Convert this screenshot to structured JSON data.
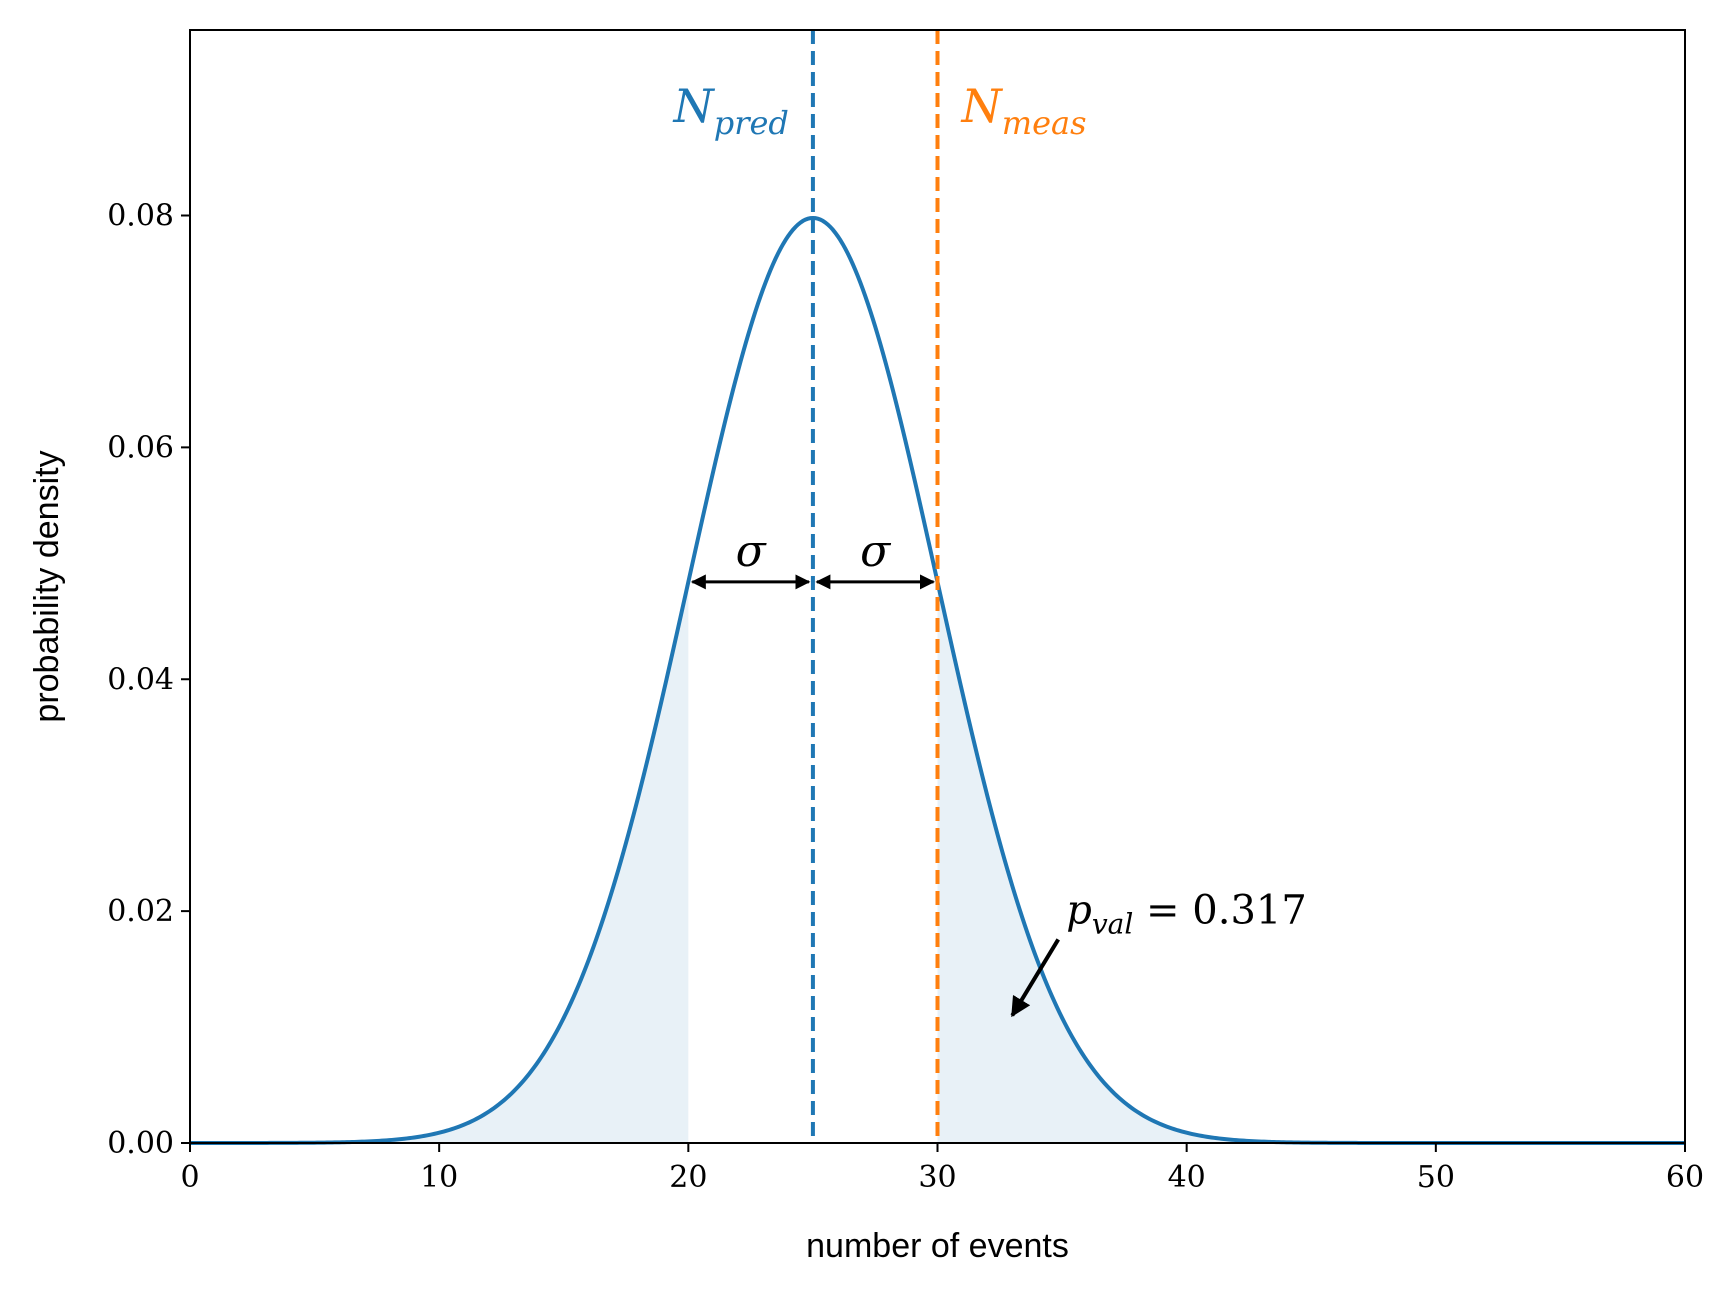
{
  "chart_data": {
    "type": "line",
    "title": "",
    "xlabel": "number of events",
    "ylabel": "probability density",
    "xlim": [
      0,
      60
    ],
    "ylim": [
      0,
      0.096
    ],
    "xticks": [
      0,
      10,
      20,
      30,
      40,
      50,
      60
    ],
    "xtick_labels": [
      "0",
      "10",
      "20",
      "30",
      "40",
      "50",
      "60"
    ],
    "yticks": [
      0.0,
      0.02,
      0.04,
      0.06,
      0.08
    ],
    "ytick_labels": [
      "0.00",
      "0.02",
      "0.04",
      "0.06",
      "0.08"
    ],
    "grid": false,
    "series": [
      {
        "kind": "gaussian",
        "mean": 25,
        "sigma": 5,
        "color": "#1f77b4"
      }
    ],
    "shaded_tails": {
      "color": "#1f77b4",
      "opacity": 0.1,
      "left": [
        0,
        20
      ],
      "right": [
        30,
        60
      ]
    },
    "vlines": [
      {
        "x": 25,
        "color": "#1f77b4",
        "style": "dashed",
        "label_main": "N",
        "label_sub": "pred"
      },
      {
        "x": 30,
        "color": "#ff7f0e",
        "style": "dashed",
        "label_main": "N",
        "label_sub": "meas"
      }
    ],
    "sigma_arrows": [
      {
        "from": 20,
        "to": 25,
        "label": "σ"
      },
      {
        "from": 25,
        "to": 30,
        "label": "σ"
      }
    ],
    "annotation": {
      "main": "p",
      "sub": "val",
      "rest": " = 0.317",
      "arrow_tip_x": 33,
      "arrow_tip_y": 0.011
    }
  }
}
